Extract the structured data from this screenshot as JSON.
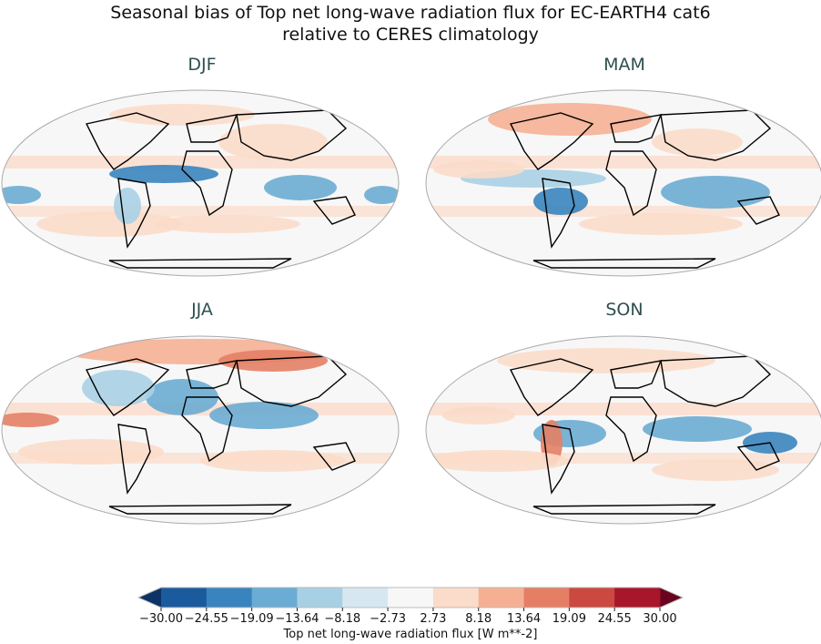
{
  "title_line1": "Seasonal bias of Top net long-wave radiation flux for EC-EARTH4 cat6",
  "title_line2": "relative to CERES climatology",
  "panels": [
    {
      "label": "DJF"
    },
    {
      "label": "MAM"
    },
    {
      "label": "JJA"
    },
    {
      "label": "SON"
    }
  ],
  "colorbar": {
    "label": "Top net long-wave radiation flux [W m**-2]",
    "ticks": [
      "−30.00",
      "−24.55",
      "−19.09",
      "−13.64",
      "−8.18",
      "−2.73",
      "2.73",
      "8.18",
      "13.64",
      "19.09",
      "24.55",
      "30.00"
    ],
    "colors": [
      "#1c5a9e",
      "#3984be",
      "#6aacd3",
      "#a8d0e4",
      "#d7e7f1",
      "#f7f7f7",
      "#fbdbc9",
      "#f5b093",
      "#e47f65",
      "#cb4941",
      "#a7162a"
    ],
    "extend_low": "#0b3366",
    "extend_high": "#6a0220"
  }
}
